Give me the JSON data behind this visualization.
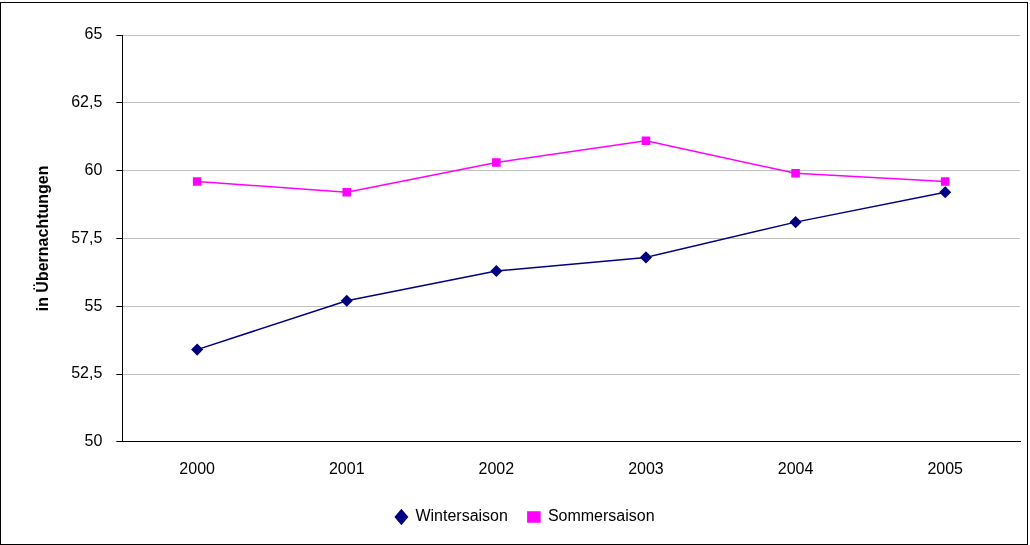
{
  "chart_data": {
    "type": "line",
    "ylabel": "in Übernachtungen",
    "categories": [
      "2000",
      "2001",
      "2002",
      "2003",
      "2004",
      "2005"
    ],
    "series": [
      {
        "name": "Wintersaison",
        "color": "#000080",
        "marker": "diamond",
        "values": [
          53.4,
          55.2,
          56.3,
          56.8,
          58.1,
          59.2
        ]
      },
      {
        "name": "Sommersaison",
        "color": "#ff00ff",
        "marker": "square",
        "values": [
          59.6,
          59.2,
          60.3,
          61.1,
          59.9,
          59.6
        ]
      }
    ],
    "ylim": [
      50,
      65
    ],
    "yticks": [
      50,
      {
        "value": 52.5,
        "label": "52,5"
      },
      55,
      {
        "value": 57.5,
        "label": "57,5"
      },
      60,
      {
        "value": 62.5,
        "label": "62,5"
      },
      65
    ],
    "grid": "y",
    "legend": "bottom"
  }
}
